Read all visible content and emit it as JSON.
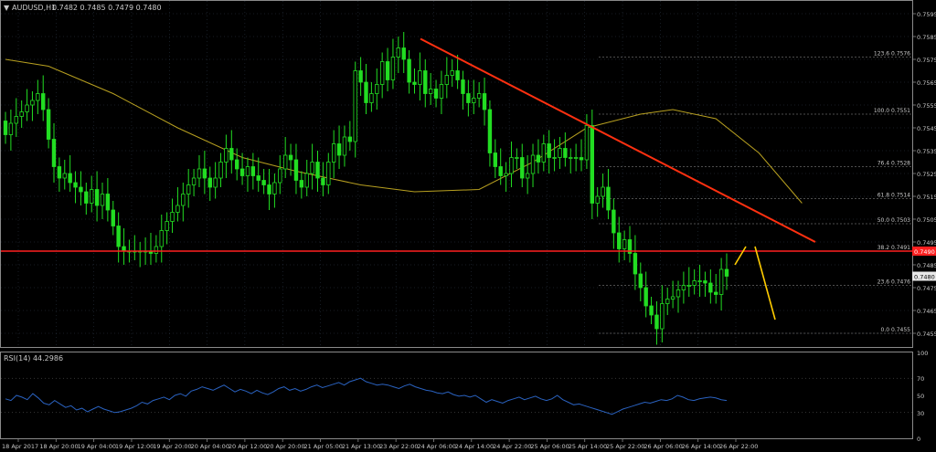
{
  "header": {
    "symbol_label": "AUDUSD,H1",
    "ohlc": "0.7482 0.7485 0.7479 0.7480"
  },
  "indicator": {
    "label": "RSI(14) 44.2986"
  },
  "colors": {
    "background": "#000000",
    "grid": "#2e3a4a",
    "candle": "#22dd22",
    "ma": "#b8a020",
    "trendline": "#ff3010",
    "support": "#ff2020",
    "fib": "#9a9a9a",
    "forecast": "#ffcc00",
    "rsi": "#2a62c0",
    "text": "#c8c8c8"
  },
  "chart_data": [
    {
      "type": "candlestick",
      "instrument": "AUDUSD",
      "timeframe": "H1",
      "ylim": [
        0.7449,
        0.7601
      ],
      "y_ticks": [
        "0.7595",
        "0.7585",
        "0.7575",
        "0.7565",
        "0.7555",
        "0.7545",
        "0.7535",
        "0.7525",
        "0.7515",
        "0.7505",
        "0.7495",
        "0.7485",
        "0.7475",
        "0.7465",
        "0.7455"
      ],
      "x_ticks": [
        "18 Apr 2017",
        "18 Apr 20:00",
        "19 Apr 04:00",
        "19 Apr 12:00",
        "19 Apr 20:00",
        "20 Apr 04:00",
        "20 Apr 12:00",
        "20 Apr 20:00",
        "21 Apr 05:00",
        "21 Apr 13:00",
        "23 Apr 22:00",
        "24 Apr 06:00",
        "24 Apr 14:00",
        "24 Apr 22:00",
        "25 Apr 06:00",
        "25 Apr 14:00",
        "25 Apr 22:00",
        "26 Apr 06:00",
        "26 Apr 14:00",
        "26 Apr 22:00"
      ],
      "current_price": "0.7480",
      "fibonacci": [
        {
          "label": "123.6",
          "value": 0.7576
        },
        {
          "label": "100.0",
          "value": 0.7551
        },
        {
          "label": "76.4",
          "value": 0.7528
        },
        {
          "label": "61.8",
          "value": 0.7514
        },
        {
          "label": "50.0",
          "value": 0.7503
        },
        {
          "label": "38.2",
          "value": 0.7491
        },
        {
          "label": "23.6",
          "value": 0.7476
        },
        {
          "label": "0.0",
          "value": 0.7455
        }
      ],
      "support_level": 0.7491,
      "support_label": "0.7490",
      "trendline": [
        [
          0.7584,
          0.7495
        ],
        [
          0,
          0
        ]
      ],
      "forecast_path": [
        0.7485,
        0.7493,
        0.7493,
        0.7461
      ],
      "closes": [
        0.7542,
        0.7547,
        0.755,
        0.7552,
        0.7555,
        0.7557,
        0.756,
        0.7553,
        0.754,
        0.7528,
        0.7523,
        0.7525,
        0.7521,
        0.7519,
        0.7517,
        0.7512,
        0.7518,
        0.7511,
        0.7516,
        0.7509,
        0.7502,
        0.7493,
        0.7491,
        0.7491,
        0.7491,
        0.7491,
        0.7491,
        0.749,
        0.7493,
        0.75,
        0.7504,
        0.7508,
        0.7511,
        0.7516,
        0.752,
        0.7523,
        0.7527,
        0.7523,
        0.7519,
        0.7523,
        0.753,
        0.7536,
        0.7531,
        0.7527,
        0.7524,
        0.7528,
        0.7524,
        0.7522,
        0.752,
        0.7516,
        0.7521,
        0.7527,
        0.7533,
        0.7531,
        0.7522,
        0.7519,
        0.7525,
        0.753,
        0.7523,
        0.752,
        0.753,
        0.7538,
        0.7533,
        0.7541,
        0.7539,
        0.757,
        0.7565,
        0.7556,
        0.756,
        0.7564,
        0.7574,
        0.7566,
        0.7576,
        0.758,
        0.7575,
        0.7565,
        0.7564,
        0.757,
        0.756,
        0.7562,
        0.7558,
        0.7564,
        0.7568,
        0.757,
        0.7566,
        0.756,
        0.7556,
        0.7558,
        0.756,
        0.7553,
        0.7534,
        0.7528,
        0.7524,
        0.7525,
        0.7532,
        0.7532,
        0.7523,
        0.7525,
        0.7533,
        0.753,
        0.7538,
        0.7532,
        0.7532,
        0.7536,
        0.7532,
        0.7532,
        0.7532,
        0.7531,
        0.7546,
        0.7512,
        0.7515,
        0.7519,
        0.7509,
        0.7499,
        0.7492,
        0.7496,
        0.749,
        0.7481,
        0.7475,
        0.7467,
        0.7463,
        0.7457,
        0.7468,
        0.747,
        0.7471,
        0.7474,
        0.7476,
        0.7476,
        0.7478,
        0.7478,
        0.7477,
        0.7473,
        0.7472,
        0.7483,
        0.748
      ],
      "moving_average": [
        [
          0.7575,
          0.7572,
          0.756,
          0.7545,
          0.7532,
          0.7526,
          0.752,
          0.7517,
          0.7518,
          0.753,
          0.7545,
          0.7551,
          0.7553,
          0.7549,
          0.7534,
          0.7512
        ],
        [
          0,
          8,
          20,
          32,
          44,
          54,
          66,
          76,
          88,
          98,
          108,
          118,
          124,
          132,
          140,
          148
        ]
      ]
    },
    {
      "type": "line",
      "indicator": "RSI(14)",
      "title": "RSI(14) 44.2986",
      "ylim": [
        0,
        100
      ],
      "y_ticks": [
        "100",
        "70",
        "50",
        "30",
        "0"
      ],
      "levels": [
        70,
        30
      ],
      "values": [
        46,
        44,
        50,
        48,
        45,
        52,
        47,
        41,
        39,
        44,
        40,
        36,
        38,
        33,
        35,
        31,
        34,
        37,
        34,
        32,
        30,
        31,
        33,
        35,
        38,
        42,
        40,
        44,
        46,
        48,
        45,
        50,
        52,
        49,
        55,
        57,
        60,
        58,
        56,
        59,
        62,
        58,
        54,
        57,
        55,
        52,
        56,
        53,
        51,
        54,
        58,
        60,
        56,
        58,
        55,
        57,
        60,
        62,
        59,
        61,
        63,
        65,
        62,
        66,
        68,
        70,
        66,
        64,
        62,
        63,
        62,
        60,
        58,
        61,
        63,
        60,
        58,
        56,
        55,
        53,
        52,
        54,
        51,
        49,
        50,
        48,
        50,
        46,
        42,
        45,
        43,
        41,
        44,
        46,
        48,
        45,
        47,
        49,
        46,
        44,
        46,
        50,
        45,
        42,
        39,
        40,
        38,
        36,
        34,
        32,
        30,
        28,
        31,
        34,
        36,
        38,
        40,
        42,
        41,
        43,
        45,
        44,
        46,
        50,
        48,
        45,
        44,
        46,
        47,
        48,
        47,
        45,
        44
      ]
    }
  ]
}
